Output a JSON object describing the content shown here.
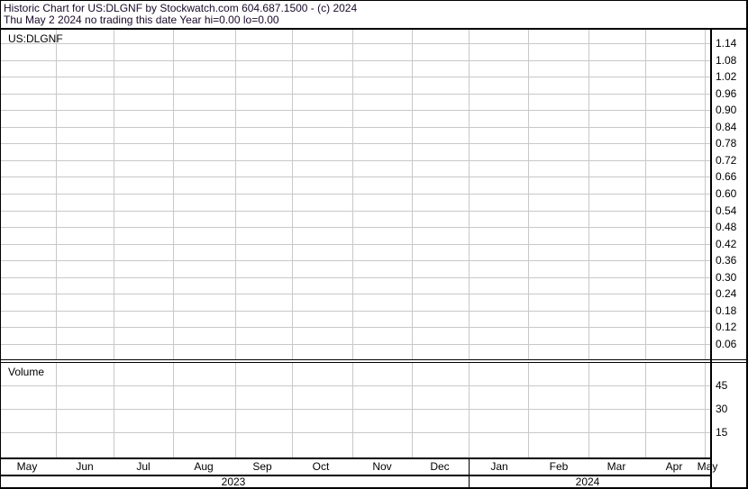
{
  "header": {
    "line1": "Historic Chart for US:DLGNF by Stockwatch.com 604.687.1500 - (c) 2024",
    "line2": "Thu May  2 2024   no trading this date  Year hi=0.00  lo=0.00"
  },
  "chart_data": [
    {
      "type": "line",
      "title": "US:DLGNF",
      "series": [],
      "yticks": [
        "1.14",
        "1.08",
        "1.02",
        "0.96",
        "0.90",
        "0.84",
        "0.78",
        "0.72",
        "0.66",
        "0.60",
        "0.54",
        "0.48",
        "0.42",
        "0.36",
        "0.30",
        "0.24",
        "0.18",
        "0.12",
        "0.06"
      ],
      "grid": true
    },
    {
      "type": "bar",
      "title": "Volume",
      "series": [],
      "yticks": [
        "45",
        "30",
        "15"
      ],
      "grid": true
    }
  ],
  "xaxis": {
    "months": [
      "May",
      "Jun",
      "Jul",
      "Aug",
      "Sep",
      "Oct",
      "Nov",
      "Dec",
      "Jan",
      "Feb",
      "Mar",
      "Apr",
      "May"
    ],
    "years": [
      "2023",
      "2024"
    ]
  }
}
